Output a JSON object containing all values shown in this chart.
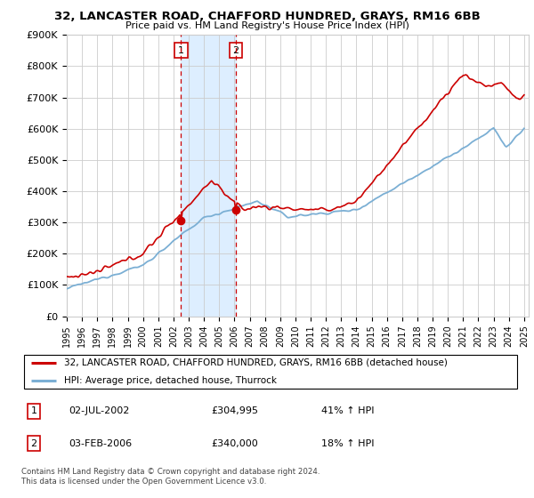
{
  "title": "32, LANCASTER ROAD, CHAFFORD HUNDRED, GRAYS, RM16 6BB",
  "subtitle": "Price paid vs. HM Land Registry's House Price Index (HPI)",
  "ylabel_ticks": [
    "£0",
    "£100K",
    "£200K",
    "£300K",
    "£400K",
    "£500K",
    "£600K",
    "£700K",
    "£800K",
    "£900K"
  ],
  "ylim": [
    0,
    900000
  ],
  "xlim_start": 1995.0,
  "xlim_end": 2025.3,
  "sale1_date": 2002.5,
  "sale1_price": 304995,
  "sale2_date": 2006.08,
  "sale2_price": 340000,
  "legend_house": "32, LANCASTER ROAD, CHAFFORD HUNDRED, GRAYS, RM16 6BB (detached house)",
  "legend_hpi": "HPI: Average price, detached house, Thurrock",
  "table_row1": [
    "1",
    "02-JUL-2002",
    "£304,995",
    "41% ↑ HPI"
  ],
  "table_row2": [
    "2",
    "03-FEB-2006",
    "£340,000",
    "18% ↑ HPI"
  ],
  "footer": "Contains HM Land Registry data © Crown copyright and database right 2024.\nThis data is licensed under the Open Government Licence v3.0.",
  "house_color": "#cc0000",
  "hpi_color": "#7bafd4",
  "shade_color": "#ddeeff",
  "vline_color": "#cc0000",
  "background_color": "#ffffff",
  "grid_color": "#cccccc"
}
